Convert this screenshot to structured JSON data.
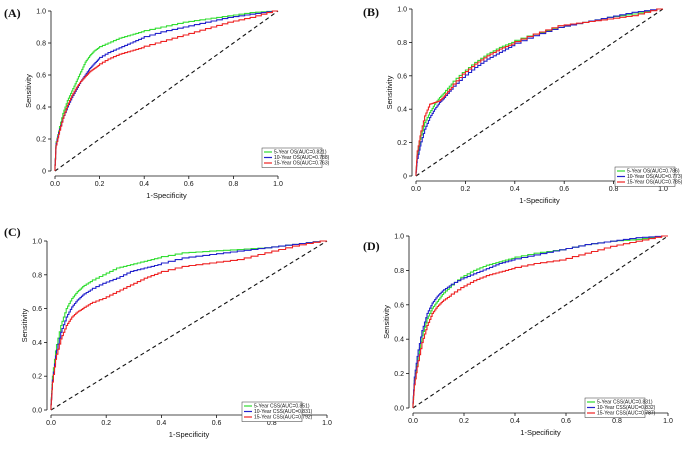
{
  "figure": {
    "background": "#ffffff"
  },
  "chart_data": [
    {
      "panel": "(A)",
      "type": "line",
      "xlabel": "1-Specificity",
      "ylabel": "Sensitivity",
      "xlim": [
        0,
        1
      ],
      "ylim": [
        0,
        1
      ],
      "xticks": [
        "0.0",
        "0.2",
        "0.4",
        "0.6",
        "0.8",
        "1.0"
      ],
      "yticks": [
        "0",
        "0.2",
        "0.4",
        "0.6",
        "0.8",
        "1.0"
      ],
      "grid": false,
      "legend": "bottom-right",
      "reference_line": "diagonal dashed",
      "series": [
        {
          "name": "5-Year OS(AUC=0.821)",
          "color": "#33dd33",
          "x": [
            0,
            0.005,
            0.02,
            0.04,
            0.06,
            0.08,
            0.1,
            0.12,
            0.14,
            0.16,
            0.18,
            0.2,
            0.25,
            0.3,
            0.35,
            0.4,
            0.5,
            0.6,
            0.7,
            0.8,
            0.9,
            1.0
          ],
          "y": [
            0,
            0.16,
            0.25,
            0.36,
            0.44,
            0.5,
            0.56,
            0.62,
            0.68,
            0.72,
            0.75,
            0.77,
            0.8,
            0.83,
            0.85,
            0.87,
            0.9,
            0.93,
            0.95,
            0.97,
            0.99,
            1.0
          ]
        },
        {
          "name": "10-Year OS(AUC=0.788)",
          "color": "#2222cc",
          "x": [
            0,
            0.005,
            0.02,
            0.04,
            0.06,
            0.08,
            0.1,
            0.12,
            0.14,
            0.16,
            0.18,
            0.2,
            0.25,
            0.3,
            0.35,
            0.4,
            0.5,
            0.6,
            0.7,
            0.8,
            0.9,
            1.0
          ],
          "y": [
            0,
            0.15,
            0.24,
            0.33,
            0.4,
            0.46,
            0.51,
            0.56,
            0.6,
            0.64,
            0.67,
            0.7,
            0.74,
            0.77,
            0.8,
            0.83,
            0.87,
            0.9,
            0.93,
            0.96,
            0.98,
            1.0
          ]
        },
        {
          "name": "15-Year OS(AUC=0.763)",
          "color": "#ee2222",
          "x": [
            0,
            0.005,
            0.02,
            0.04,
            0.06,
            0.08,
            0.1,
            0.12,
            0.14,
            0.16,
            0.18,
            0.2,
            0.25,
            0.3,
            0.35,
            0.4,
            0.5,
            0.6,
            0.7,
            0.8,
            0.9,
            1.0
          ],
          "y": [
            0,
            0.14,
            0.23,
            0.33,
            0.41,
            0.47,
            0.52,
            0.56,
            0.59,
            0.62,
            0.64,
            0.66,
            0.7,
            0.73,
            0.75,
            0.77,
            0.81,
            0.85,
            0.89,
            0.93,
            0.96,
            1.0
          ]
        }
      ]
    },
    {
      "panel": "(B)",
      "type": "line",
      "xlabel": "1-Specificity",
      "ylabel": "Sensitivity",
      "xlim": [
        0,
        1
      ],
      "ylim": [
        0,
        1
      ],
      "xticks": [
        "0.0",
        "0.2",
        "0.4",
        "0.6",
        "0.8",
        "1.0"
      ],
      "yticks": [
        "0",
        "0.2",
        "0.4",
        "0.6",
        "0.8",
        "1.0"
      ],
      "grid": false,
      "legend": "bottom-right",
      "reference_line": "diagonal dashed",
      "series": [
        {
          "name": "5-Year OS(AUC=0.786)",
          "color": "#33dd33",
          "x": [
            0,
            0.005,
            0.02,
            0.04,
            0.06,
            0.08,
            0.1,
            0.12,
            0.15,
            0.2,
            0.25,
            0.3,
            0.35,
            0.4,
            0.5,
            0.6,
            0.7,
            0.8,
            0.9,
            1.0
          ],
          "y": [
            0,
            0.1,
            0.22,
            0.32,
            0.38,
            0.43,
            0.47,
            0.5,
            0.55,
            0.62,
            0.68,
            0.73,
            0.77,
            0.8,
            0.85,
            0.89,
            0.92,
            0.95,
            0.97,
            1.0
          ]
        },
        {
          "name": "10-Year OS(AUC=0.773)",
          "color": "#2222cc",
          "x": [
            0,
            0.005,
            0.02,
            0.04,
            0.06,
            0.08,
            0.1,
            0.12,
            0.15,
            0.2,
            0.25,
            0.3,
            0.35,
            0.4,
            0.5,
            0.6,
            0.7,
            0.8,
            0.9,
            1.0
          ],
          "y": [
            0,
            0.08,
            0.18,
            0.28,
            0.35,
            0.4,
            0.44,
            0.47,
            0.52,
            0.59,
            0.65,
            0.7,
            0.74,
            0.78,
            0.84,
            0.89,
            0.92,
            0.95,
            0.98,
            1.0
          ]
        },
        {
          "name": "15-Year OS(AUC=0.785)",
          "color": "#ee2222",
          "x": [
            0,
            0.005,
            0.02,
            0.04,
            0.06,
            0.08,
            0.1,
            0.12,
            0.15,
            0.2,
            0.25,
            0.3,
            0.35,
            0.4,
            0.5,
            0.6,
            0.7,
            0.8,
            0.9,
            1.0
          ],
          "y": [
            0,
            0.12,
            0.24,
            0.36,
            0.43,
            0.44,
            0.45,
            0.48,
            0.53,
            0.61,
            0.67,
            0.72,
            0.76,
            0.79,
            0.85,
            0.9,
            0.92,
            0.94,
            0.96,
            1.0
          ]
        }
      ]
    },
    {
      "panel": "(C)",
      "type": "line",
      "xlabel": "1-Specificity",
      "ylabel": "Sensitivity",
      "xlim": [
        0,
        1
      ],
      "ylim": [
        0,
        1
      ],
      "xticks": [
        "0.0",
        "0.2",
        "0.4",
        "0.6",
        "0.8",
        "1.0"
      ],
      "yticks": [
        "0.0",
        "0.2",
        "0.4",
        "0.6",
        "0.8",
        "1.0"
      ],
      "grid": false,
      "legend": "bottom-right",
      "reference_line": "diagonal dashed",
      "series": [
        {
          "name": "5-Year CSS(AUC=0.851)",
          "color": "#33dd33",
          "x": [
            0,
            0.005,
            0.02,
            0.04,
            0.06,
            0.08,
            0.1,
            0.12,
            0.15,
            0.2,
            0.25,
            0.3,
            0.35,
            0.4,
            0.5,
            0.6,
            0.7,
            0.8,
            0.9,
            1.0
          ],
          "y": [
            0,
            0.15,
            0.35,
            0.5,
            0.6,
            0.66,
            0.7,
            0.73,
            0.76,
            0.8,
            0.84,
            0.86,
            0.88,
            0.9,
            0.93,
            0.94,
            0.95,
            0.96,
            0.98,
            1.0
          ]
        },
        {
          "name": "10-Year CSS(AUC=0.831)",
          "color": "#2222cc",
          "x": [
            0,
            0.005,
            0.02,
            0.04,
            0.06,
            0.08,
            0.1,
            0.12,
            0.15,
            0.2,
            0.25,
            0.3,
            0.35,
            0.4,
            0.5,
            0.6,
            0.7,
            0.8,
            0.9,
            1.0
          ],
          "y": [
            0,
            0.13,
            0.32,
            0.46,
            0.55,
            0.61,
            0.65,
            0.68,
            0.71,
            0.75,
            0.78,
            0.82,
            0.84,
            0.86,
            0.9,
            0.92,
            0.94,
            0.96,
            0.98,
            1.0
          ]
        },
        {
          "name": "15-Year CSS(AUC=0.792)",
          "color": "#ee2222",
          "x": [
            0,
            0.005,
            0.02,
            0.04,
            0.06,
            0.08,
            0.1,
            0.12,
            0.15,
            0.2,
            0.25,
            0.3,
            0.35,
            0.4,
            0.5,
            0.6,
            0.7,
            0.8,
            0.9,
            1.0
          ],
          "y": [
            0,
            0.12,
            0.3,
            0.42,
            0.5,
            0.55,
            0.58,
            0.6,
            0.63,
            0.66,
            0.7,
            0.74,
            0.78,
            0.81,
            0.85,
            0.87,
            0.89,
            0.93,
            0.97,
            1.0
          ]
        }
      ]
    },
    {
      "panel": "(D)",
      "type": "line",
      "xlabel": "1-Specificity",
      "ylabel": "Sensitivity",
      "xlim": [
        0,
        1
      ],
      "ylim": [
        0,
        1
      ],
      "xticks": [
        "0.0",
        "0.2",
        "0.4",
        "0.6",
        "0.8",
        "1.0"
      ],
      "yticks": [
        "0.0",
        "0.2",
        "0.4",
        "0.6",
        "0.8",
        "1.0"
      ],
      "grid": false,
      "legend": "bottom-right",
      "reference_line": "diagonal dashed",
      "series": [
        {
          "name": "5-Year CSS(AUC=0.831)",
          "color": "#33dd33",
          "x": [
            0,
            0.005,
            0.02,
            0.04,
            0.06,
            0.08,
            0.1,
            0.12,
            0.15,
            0.2,
            0.25,
            0.3,
            0.35,
            0.4,
            0.5,
            0.6,
            0.7,
            0.8,
            0.9,
            1.0
          ],
          "y": [
            0,
            0.12,
            0.28,
            0.42,
            0.52,
            0.58,
            0.62,
            0.66,
            0.7,
            0.76,
            0.8,
            0.83,
            0.85,
            0.87,
            0.9,
            0.92,
            0.95,
            0.97,
            0.98,
            1.0
          ]
        },
        {
          "name": "10-Year CSS(AUC=0.832)",
          "color": "#2222cc",
          "x": [
            0,
            0.005,
            0.02,
            0.04,
            0.06,
            0.08,
            0.1,
            0.12,
            0.15,
            0.2,
            0.25,
            0.3,
            0.35,
            0.4,
            0.5,
            0.6,
            0.7,
            0.8,
            0.9,
            1.0
          ],
          "y": [
            0,
            0.14,
            0.3,
            0.45,
            0.55,
            0.61,
            0.65,
            0.68,
            0.71,
            0.75,
            0.78,
            0.81,
            0.84,
            0.86,
            0.89,
            0.92,
            0.95,
            0.97,
            0.99,
            1.0
          ]
        },
        {
          "name": "15-Year CSS(AUC=0.787)",
          "color": "#ee2222",
          "x": [
            0,
            0.005,
            0.02,
            0.04,
            0.06,
            0.08,
            0.1,
            0.12,
            0.15,
            0.2,
            0.25,
            0.3,
            0.35,
            0.4,
            0.5,
            0.6,
            0.7,
            0.8,
            0.9,
            1.0
          ],
          "y": [
            0,
            0.1,
            0.24,
            0.38,
            0.48,
            0.55,
            0.59,
            0.62,
            0.65,
            0.7,
            0.74,
            0.77,
            0.79,
            0.81,
            0.84,
            0.86,
            0.9,
            0.94,
            0.97,
            1.0
          ]
        }
      ]
    }
  ]
}
